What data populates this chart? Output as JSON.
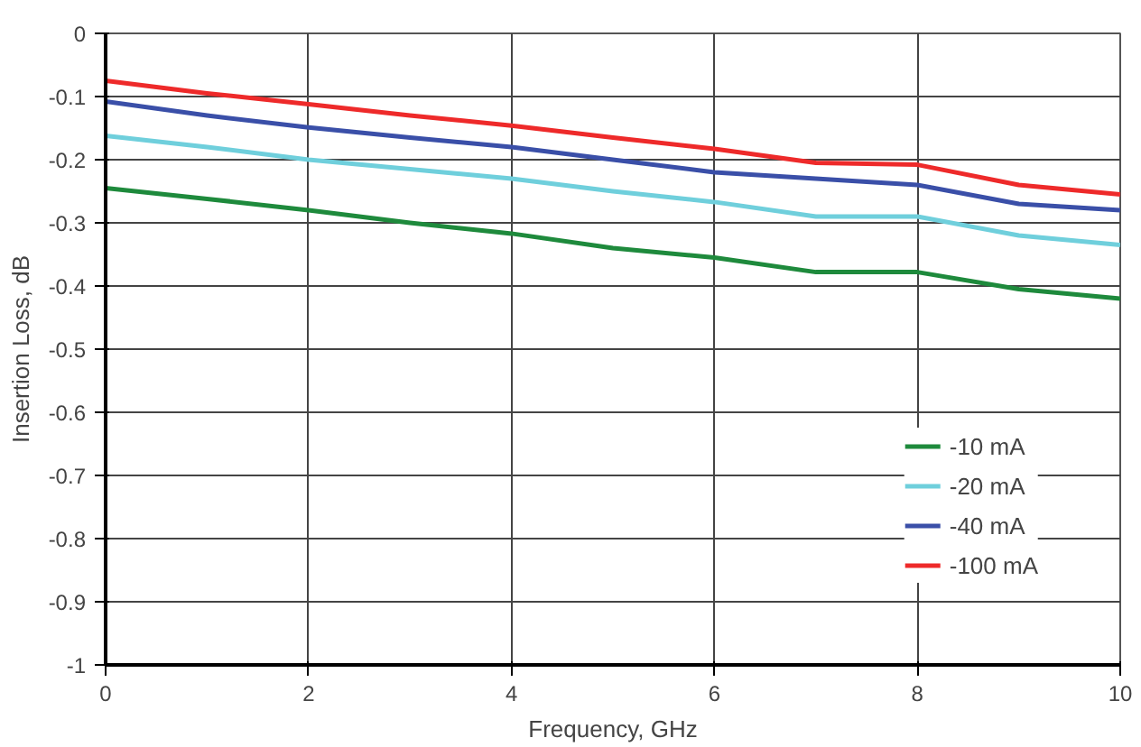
{
  "chart_data": {
    "type": "line",
    "xlabel": "Frequency, GHz",
    "ylabel": "Insertion Loss, dB",
    "x": [
      0,
      1,
      2,
      3,
      4,
      5,
      6,
      7,
      8,
      9,
      10
    ],
    "series": [
      {
        "name": "-10 mA",
        "color": "#1e8a3c",
        "values": [
          -0.245,
          -0.262,
          -0.28,
          -0.3,
          -0.317,
          -0.34,
          -0.355,
          -0.378,
          -0.378,
          -0.405,
          -0.42
        ]
      },
      {
        "name": "-20 mA",
        "color": "#6fcfdc",
        "values": [
          -0.162,
          -0.18,
          -0.2,
          -0.215,
          -0.23,
          -0.25,
          -0.267,
          -0.29,
          -0.29,
          -0.32,
          -0.335
        ]
      },
      {
        "name": "-40 mA",
        "color": "#3a4fa8",
        "values": [
          -0.108,
          -0.13,
          -0.149,
          -0.165,
          -0.18,
          -0.2,
          -0.22,
          -0.23,
          -0.24,
          -0.27,
          -0.28
        ]
      },
      {
        "name": "-100 mA",
        "color": "#ee2a2a",
        "values": [
          -0.075,
          -0.095,
          -0.112,
          -0.13,
          -0.146,
          -0.165,
          -0.183,
          -0.205,
          -0.208,
          -0.24,
          -0.255
        ]
      }
    ],
    "xlim": [
      0,
      10
    ],
    "xticks": [
      0,
      2,
      4,
      6,
      8,
      10
    ],
    "ylim": [
      -1,
      0
    ],
    "yticks": [
      0,
      -0.1,
      -0.2,
      -0.3,
      -0.4,
      -0.5,
      -0.6,
      -0.7,
      -0.8,
      -0.9,
      -1
    ],
    "grid": true,
    "legend": "bottom right",
    "line_style": "solid"
  }
}
